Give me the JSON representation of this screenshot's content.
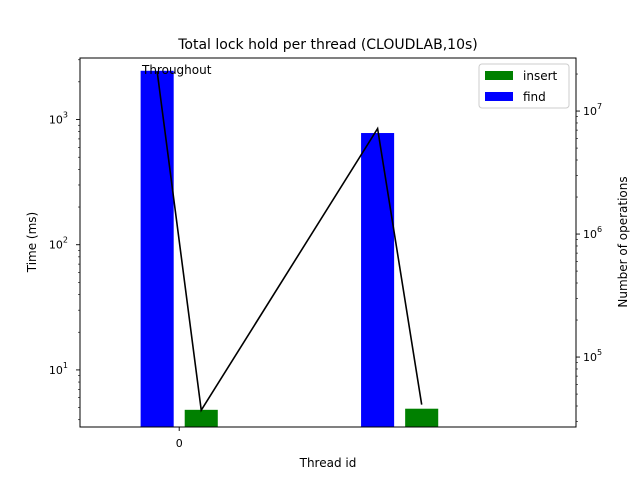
{
  "chart_data": {
    "type": "bar",
    "title": "Total lock hold per thread (CLOUDLAB,10s)",
    "xlabel": "Thread id",
    "ylabel": "Time (ms)",
    "y2label": "Number of operations",
    "x_ticks": [
      {
        "value": 0,
        "label": "0"
      }
    ],
    "y_scale": "log",
    "ylim": [
      3.5,
      3100
    ],
    "y_ticks": [
      {
        "value": 10,
        "base": "10",
        "exp": "1"
      },
      {
        "value": 100,
        "base": "10",
        "exp": "2"
      },
      {
        "value": 1000,
        "base": "10",
        "exp": "3"
      }
    ],
    "y2_scale": "log",
    "y2lim": [
      27000,
      27000000
    ],
    "y2_ticks": [
      {
        "value": 100000,
        "base": "10",
        "exp": "5"
      },
      {
        "value": 1000000,
        "base": "10",
        "exp": "6"
      },
      {
        "value": 10000000,
        "base": "10",
        "exp": "7"
      }
    ],
    "xlim": [
      -0.9,
      3.6
    ],
    "bar_width": 0.3,
    "series": [
      {
        "name": "insert",
        "color": "#008000",
        "x": [
          0.2,
          2.2
        ],
        "values": [
          4.8,
          4.9
        ]
      },
      {
        "name": "find",
        "color": "#0000ff",
        "x": [
          -0.2,
          1.8
        ],
        "values": [
          2450,
          780
        ]
      }
    ],
    "line": {
      "color": "#000000",
      "x": [
        -0.2,
        0.2,
        1.8,
        2.2
      ],
      "values": [
        21000000,
        37000,
        7200000,
        41000
      ]
    },
    "annotation": {
      "text": "Throughout"
    },
    "legend": {
      "position": "upper right"
    },
    "grid": false
  }
}
